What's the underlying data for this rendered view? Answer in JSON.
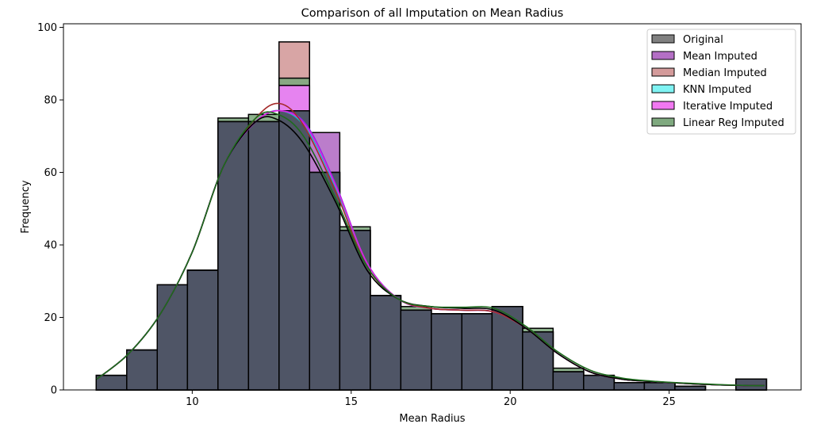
{
  "chart_data": {
    "type": "histogram",
    "title": "Comparison of all Imputation on Mean Radius",
    "xlabel": "Mean Radius",
    "ylabel": "Frequency",
    "xlim": [
      5.95,
      29.15
    ],
    "ylim": [
      0,
      101
    ],
    "xticks": [
      10,
      15,
      20,
      25
    ],
    "yticks": [
      0,
      20,
      40,
      60,
      80,
      100
    ],
    "grid": false,
    "legend_position": "top-right",
    "bins": [
      6.98,
      7.94,
      8.9,
      9.85,
      10.81,
      11.77,
      12.73,
      13.69,
      14.64,
      15.6,
      16.56,
      17.52,
      18.48,
      19.43,
      20.39,
      21.35,
      22.31,
      23.27,
      24.22,
      25.18,
      26.14,
      27.1,
      28.06
    ],
    "series": [
      {
        "name": "Original",
        "color": "#808080",
        "values": [
          4,
          11,
          29,
          33,
          74,
          74,
          77,
          60,
          44,
          26,
          22,
          21,
          21,
          23,
          16,
          5,
          4,
          2,
          2,
          1,
          0,
          3
        ]
      },
      {
        "name": "Mean Imputed",
        "color": "#b46fc5",
        "values": [
          4,
          11,
          29,
          33,
          74,
          74,
          77,
          71,
          44,
          26,
          22,
          21,
          21,
          23,
          16,
          5,
          4,
          2,
          2,
          1,
          0,
          3
        ]
      },
      {
        "name": "Median Imputed",
        "color": "#d49b9b",
        "values": [
          4,
          11,
          29,
          33,
          74,
          74,
          96,
          60,
          44,
          26,
          22,
          21,
          21,
          23,
          16,
          5,
          4,
          2,
          2,
          1,
          0,
          3
        ]
      },
      {
        "name": "KNN Imputed",
        "color": "#7ff3f3",
        "values": [
          4,
          11,
          29,
          33,
          74,
          74,
          84,
          60,
          44,
          26,
          22,
          21,
          21,
          23,
          16,
          5,
          4,
          2,
          2,
          1,
          0,
          3
        ]
      },
      {
        "name": "Iterative Imputed",
        "color": "#f178f1",
        "values": [
          4,
          11,
          29,
          33,
          74,
          74,
          84,
          60,
          44,
          26,
          22,
          21,
          21,
          23,
          16,
          5,
          4,
          2,
          2,
          1,
          0,
          3
        ]
      },
      {
        "name": "Linear Reg Imputed",
        "color": "#7fa97f",
        "values": [
          4,
          11,
          29,
          33,
          75,
          76,
          86,
          60,
          45,
          26,
          23,
          21,
          21,
          23,
          17,
          6,
          4,
          2,
          2,
          1,
          0,
          3
        ]
      }
    ],
    "kde": [
      {
        "name": "Original",
        "color": "#000000",
        "x": [
          7,
          8,
          9,
          10,
          11,
          12,
          12.7,
          13.5,
          14.5,
          15.5,
          16.5,
          17.5,
          18.5,
          19.5,
          20.5,
          21.5,
          22.5,
          23.5,
          24.5,
          25.5,
          26.5,
          27.5,
          28
        ],
        "y": [
          3,
          10,
          21,
          38,
          62,
          74,
          74.5,
          68,
          52,
          33,
          25,
          23,
          22.5,
          22,
          17,
          10,
          5,
          3,
          2.3,
          1.8,
          1.4,
          1.2,
          1.2
        ]
      },
      {
        "name": "Mean Imputed",
        "color": "#8a2be2",
        "x": [
          7,
          8,
          9,
          10,
          11,
          12,
          12.8,
          13.6,
          14.5,
          15.5,
          16.5,
          17.5,
          18.5,
          19.5,
          20.5,
          21.5,
          22.5,
          23.5,
          24.5,
          25.5,
          26.5,
          27.5,
          28
        ],
        "y": [
          3,
          10,
          21,
          38,
          62,
          74,
          77,
          73,
          57,
          35,
          25,
          22.5,
          22,
          21.5,
          17,
          10,
          5,
          3,
          2.3,
          1.8,
          1.4,
          1.2,
          1.2
        ]
      },
      {
        "name": "Median Imputed",
        "color": "#a52a2a",
        "x": [
          7,
          8,
          9,
          10,
          11,
          12,
          12.75,
          13.5,
          14.5,
          15.5,
          16.5,
          17.5,
          18.5,
          19.5,
          20.5,
          21.5,
          22.5,
          23.5,
          24.5,
          25.5,
          26.5,
          27.5,
          28
        ],
        "y": [
          3,
          10,
          21,
          38,
          62,
          75,
          79,
          73,
          55,
          34,
          25,
          22.5,
          22,
          21.5,
          17,
          10,
          5,
          3,
          2.3,
          1.8,
          1.4,
          1.2,
          1.2
        ]
      },
      {
        "name": "KNN Imputed",
        "color": "#00ced1",
        "x": [
          7,
          8,
          9,
          10,
          11,
          12,
          12.8,
          13.6,
          14.5,
          15.5,
          16.5,
          17.5,
          18.5,
          19.5,
          20.5,
          21.5,
          22.5,
          23.5,
          24.5,
          25.5,
          26.5,
          27.5,
          28
        ],
        "y": [
          3,
          10,
          21,
          38,
          62,
          74,
          77,
          72,
          56,
          35,
          25,
          22.5,
          22,
          21.5,
          17,
          10,
          5,
          3,
          2.3,
          1.8,
          1.4,
          1.2,
          1.2
        ]
      },
      {
        "name": "Iterative Imputed",
        "color": "#e020e0",
        "x": [
          7,
          8,
          9,
          10,
          11,
          12,
          12.8,
          13.6,
          14.5,
          15.5,
          16.5,
          17.5,
          18.5,
          19.5,
          20.5,
          21.5,
          22.5,
          23.5,
          24.5,
          25.5,
          26.5,
          27.5,
          28
        ],
        "y": [
          3,
          10,
          21,
          38,
          62,
          74,
          77,
          72.5,
          56.5,
          35,
          25,
          22.5,
          22,
          21.5,
          17,
          10,
          5,
          3,
          2.3,
          1.8,
          1.4,
          1.2,
          1.2
        ]
      },
      {
        "name": "Linear Reg Imputed",
        "color": "#1e6b1e",
        "x": [
          7,
          8,
          9,
          10,
          11,
          12,
          12.7,
          13.5,
          14.5,
          15.5,
          16.5,
          17.5,
          18.5,
          19.5,
          20.5,
          21.5,
          22.5,
          23.5,
          24.5,
          25.5,
          26.5,
          27.5,
          28
        ],
        "y": [
          3,
          10,
          21,
          38,
          62,
          75,
          76,
          70,
          53,
          34,
          25,
          23,
          22.8,
          22.5,
          17.5,
          10.5,
          5.5,
          3.3,
          2.4,
          1.9,
          1.5,
          1.2,
          1.2
        ]
      }
    ],
    "overlay_color": "#4f5566"
  }
}
